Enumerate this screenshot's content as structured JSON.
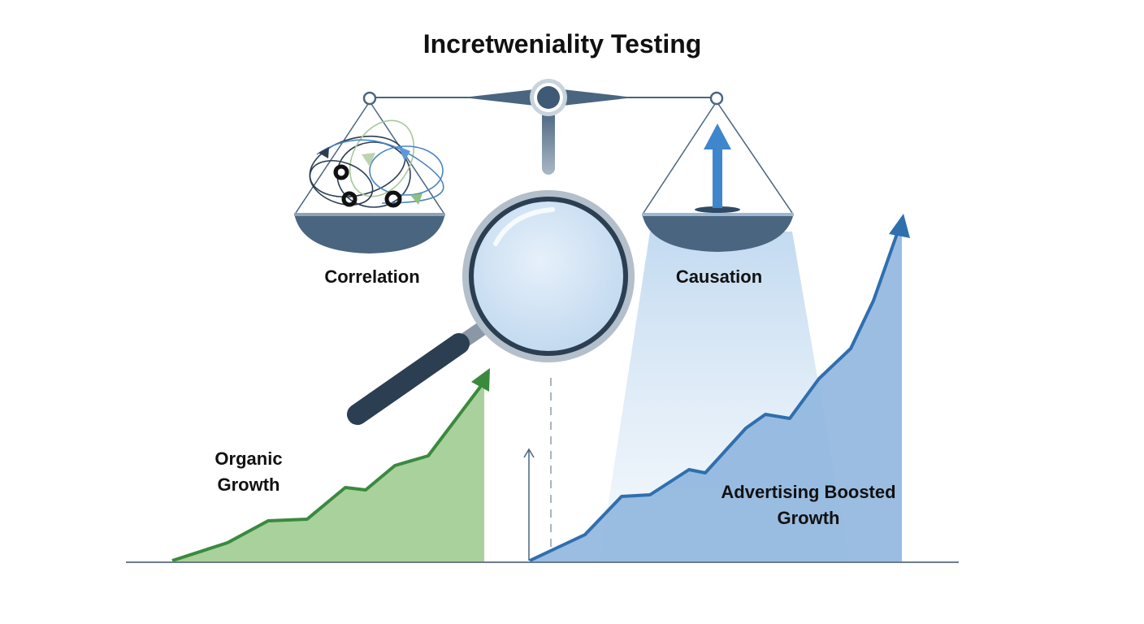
{
  "title": "Incretweniality Testing",
  "labels": {
    "correlation": "Correlation",
    "causation": "Causation",
    "organic_line1": "Organic",
    "organic_line2": "Growth",
    "advertising_line1": "Advertising Boosted",
    "advertising_line2": "Growth"
  },
  "colors": {
    "organic": "#3a8a3e",
    "organic_fill": "#a8d19c",
    "advertising": "#2f6fae",
    "advertising_fill": "#8fb6de",
    "scale": "#4a6580"
  },
  "icons": [
    "balance-scale-icon",
    "magnifying-glass-icon",
    "tangled-lines-icon",
    "up-arrow-icon"
  ]
}
